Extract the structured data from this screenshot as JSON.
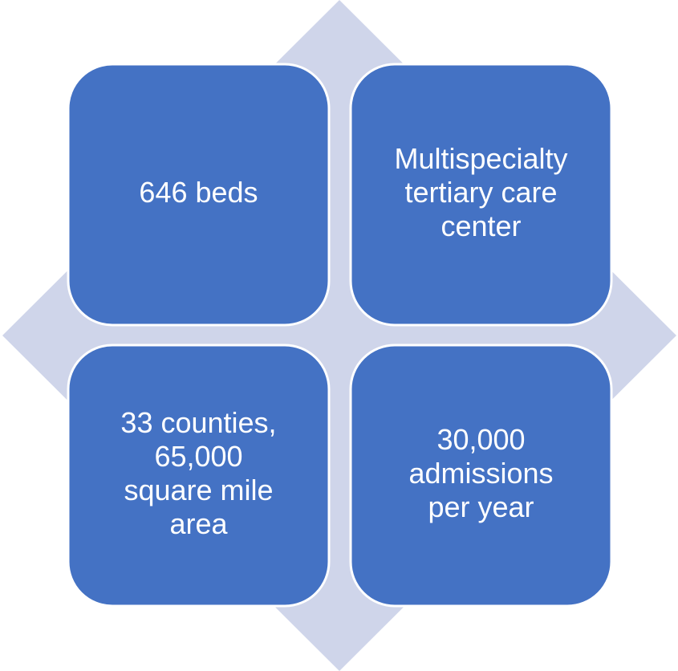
{
  "boxes": [
    {
      "lines": [
        "646 beds"
      ]
    },
    {
      "lines": [
        "Multispecialty",
        "tertiary care",
        "center"
      ]
    },
    {
      "lines": [
        "33 counties,",
        "65,000",
        "square mile",
        "area"
      ]
    },
    {
      "lines": [
        "30,000",
        "admissions",
        "per year"
      ]
    }
  ]
}
